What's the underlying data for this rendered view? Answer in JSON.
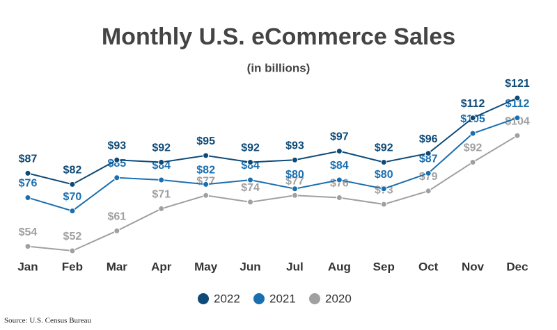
{
  "chart_data": {
    "type": "line",
    "title": "Monthly U.S. eCommerce Sales",
    "subtitle": "(in billions)",
    "source": "Source: U.S. Census Bureau",
    "categories": [
      "Jan",
      "Feb",
      "Mar",
      "Apr",
      "May",
      "Jun",
      "Jul",
      "Aug",
      "Sep",
      "Oct",
      "Nov",
      "Dec"
    ],
    "series": [
      {
        "name": "2022",
        "color": "#0d4a78",
        "values": [
          87,
          82,
          93,
          92,
          95,
          92,
          93,
          97,
          92,
          96,
          112,
          121
        ],
        "value_labels": [
          "$87",
          "$82",
          "$93",
          "$92",
          "$95",
          "$92",
          "$93",
          "$97",
          "$92",
          "$96",
          "$112",
          "$121"
        ]
      },
      {
        "name": "2021",
        "color": "#1a6fb0",
        "values": [
          76,
          70,
          85,
          84,
          82,
          84,
          80,
          84,
          80,
          87,
          105,
          112
        ],
        "value_labels": [
          "$76",
          "$70",
          "$85",
          "$84",
          "$82",
          "$84",
          "$80",
          "$84",
          "$80",
          "$87",
          "$105",
          "$112"
        ]
      },
      {
        "name": "2020",
        "color": "#a0a0a0",
        "values": [
          54,
          52,
          61,
          71,
          77,
          74,
          77,
          76,
          73,
          79,
          92,
          104
        ],
        "value_labels": [
          "$54",
          "$52",
          "$61",
          "$71",
          "$77",
          "$74",
          "$77",
          "$76",
          "$73",
          "$79",
          "$92",
          "$104"
        ]
      }
    ]
  }
}
